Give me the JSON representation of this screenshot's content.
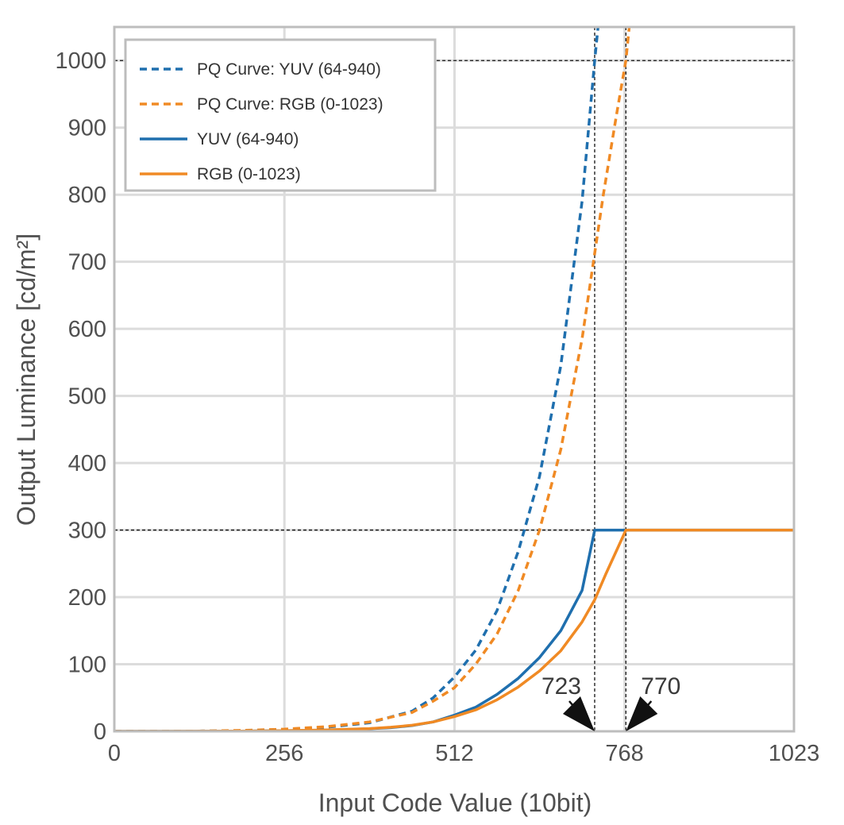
{
  "chart_data": {
    "type": "line",
    "title": "",
    "xlabel": "Input Code Value (10bit)",
    "ylabel": "Output Luminance [cd/m²]",
    "xlim": [
      0,
      1023
    ],
    "ylim": [
      0,
      1050
    ],
    "x_ticks": [
      0,
      256,
      512,
      768,
      1023
    ],
    "y_ticks": [
      0,
      100,
      200,
      300,
      400,
      500,
      600,
      700,
      800,
      900,
      1000
    ],
    "grid": true,
    "legend_position": "top-left",
    "reference_lines": [
      {
        "orientation": "horizontal",
        "value": 1000
      },
      {
        "orientation": "horizontal",
        "value": 300
      },
      {
        "orientation": "vertical",
        "value": 723
      },
      {
        "orientation": "vertical",
        "value": 770
      }
    ],
    "annotations": [
      {
        "text": "723",
        "x": 723,
        "y": 0
      },
      {
        "text": "770",
        "x": 770,
        "y": 0
      }
    ],
    "series": [
      {
        "name": "PQ Curve: YUV (64-940)",
        "style": "dashed",
        "color": "#1f6fae",
        "x": [
          0,
          64,
          128,
          192,
          256,
          320,
          384,
          448,
          480,
          512,
          544,
          576,
          608,
          640,
          672,
          704,
          723,
          728
        ],
        "y": [
          0,
          0,
          0.3,
          1,
          2.5,
          6,
          12.7,
          30,
          50,
          81,
          121,
          180,
          268,
          380,
          545,
          790,
          1000,
          1050
        ]
      },
      {
        "name": "PQ Curve: RGB (0-1023)",
        "style": "dashed",
        "color": "#f08a24",
        "x": [
          0,
          64,
          128,
          192,
          256,
          320,
          384,
          448,
          480,
          512,
          544,
          576,
          608,
          640,
          672,
          704,
          736,
          756,
          770,
          775
        ],
        "y": [
          0,
          0.1,
          0.4,
          1.3,
          3.2,
          7,
          14,
          28,
          45,
          65,
          100,
          145,
          210,
          300,
          420,
          585,
          800,
          920,
          1000,
          1050
        ]
      },
      {
        "name": "YUV (64-940)",
        "style": "solid",
        "color": "#1f6fae",
        "x": [
          0,
          64,
          128,
          192,
          256,
          320,
          384,
          416,
          448,
          480,
          512,
          544,
          576,
          608,
          640,
          672,
          704,
          723,
          768,
          1023
        ],
        "y": [
          0,
          0,
          0.1,
          0.3,
          0.8,
          1.8,
          3.8,
          5.5,
          8.5,
          14,
          24,
          36,
          55,
          79,
          110,
          150,
          210,
          300,
          300,
          300
        ]
      },
      {
        "name": "RGB (0-1023)",
        "style": "solid",
        "color": "#f08a24",
        "x": [
          0,
          64,
          128,
          192,
          256,
          320,
          384,
          416,
          448,
          480,
          512,
          544,
          576,
          608,
          640,
          672,
          704,
          723,
          740,
          770,
          1023
        ],
        "y": [
          0,
          0,
          0.1,
          0.4,
          1,
          2,
          4,
          6,
          9,
          14,
          22,
          32,
          47,
          66,
          90,
          120,
          163,
          196,
          235,
          300,
          300
        ]
      }
    ]
  }
}
